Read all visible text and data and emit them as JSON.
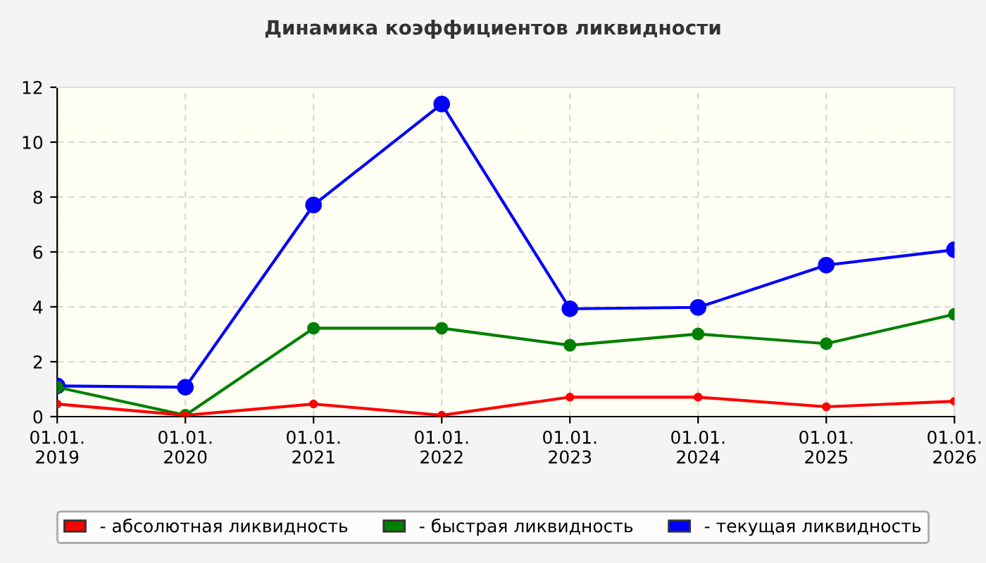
{
  "chart_data": {
    "type": "line",
    "title": "Динамика коэффициентов ликвидности",
    "categories": [
      "01.01.\n2019",
      "01.01.\n2020",
      "01.01.\n2021",
      "01.01.\n2022",
      "01.01.\n2023",
      "01.01.\n2024",
      "01.01.\n2025",
      "01.01.\n2026"
    ],
    "series": [
      {
        "name": "- абсолютная ликвидность",
        "color": "#ff0000",
        "values": [
          0.46,
          0.05,
          0.46,
          0.05,
          0.71,
          0.71,
          0.36,
          0.56
        ]
      },
      {
        "name": "- быстрая ликвидность",
        "color": "#008000",
        "values": [
          1.07,
          0.05,
          3.22,
          3.22,
          2.6,
          3.01,
          2.66,
          3.73
        ]
      },
      {
        "name": "- текущая ликвидность",
        "color": "#0000ff",
        "values": [
          1.12,
          1.07,
          7.71,
          11.39,
          3.93,
          3.98,
          5.52,
          6.08
        ]
      }
    ],
    "ylim": [
      0,
      12
    ],
    "yticks": [
      0,
      2,
      4,
      6,
      8,
      10,
      12
    ],
    "grid": true,
    "legend": "bottom",
    "marker": "circle",
    "line_style": "solid"
  }
}
